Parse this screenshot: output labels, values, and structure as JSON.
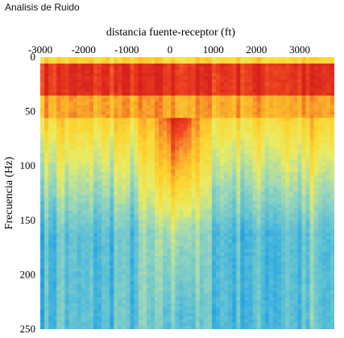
{
  "title": "Analisis de Ruido",
  "chart_data": {
    "type": "heatmap",
    "xlabel": "distancia fuente-receptor (ft)",
    "ylabel": "Frecuencia (Hz)",
    "xlim": [
      -3000,
      3800
    ],
    "ylim": [
      0,
      250
    ],
    "x_ticks": [
      -3000,
      -2000,
      -1000,
      0,
      1000,
      2000,
      3000
    ],
    "y_ticks": [
      0,
      50,
      100,
      150,
      200,
      250
    ],
    "x_axis_position": "top",
    "y_axis_inverted": true,
    "grid": false,
    "colormap": [
      "#1a9ee4",
      "#5cc0d6",
      "#9fd8b8",
      "#e9ec63",
      "#fcd52f",
      "#f9a72a",
      "#ef4a22",
      "#d8201c"
    ]
  }
}
